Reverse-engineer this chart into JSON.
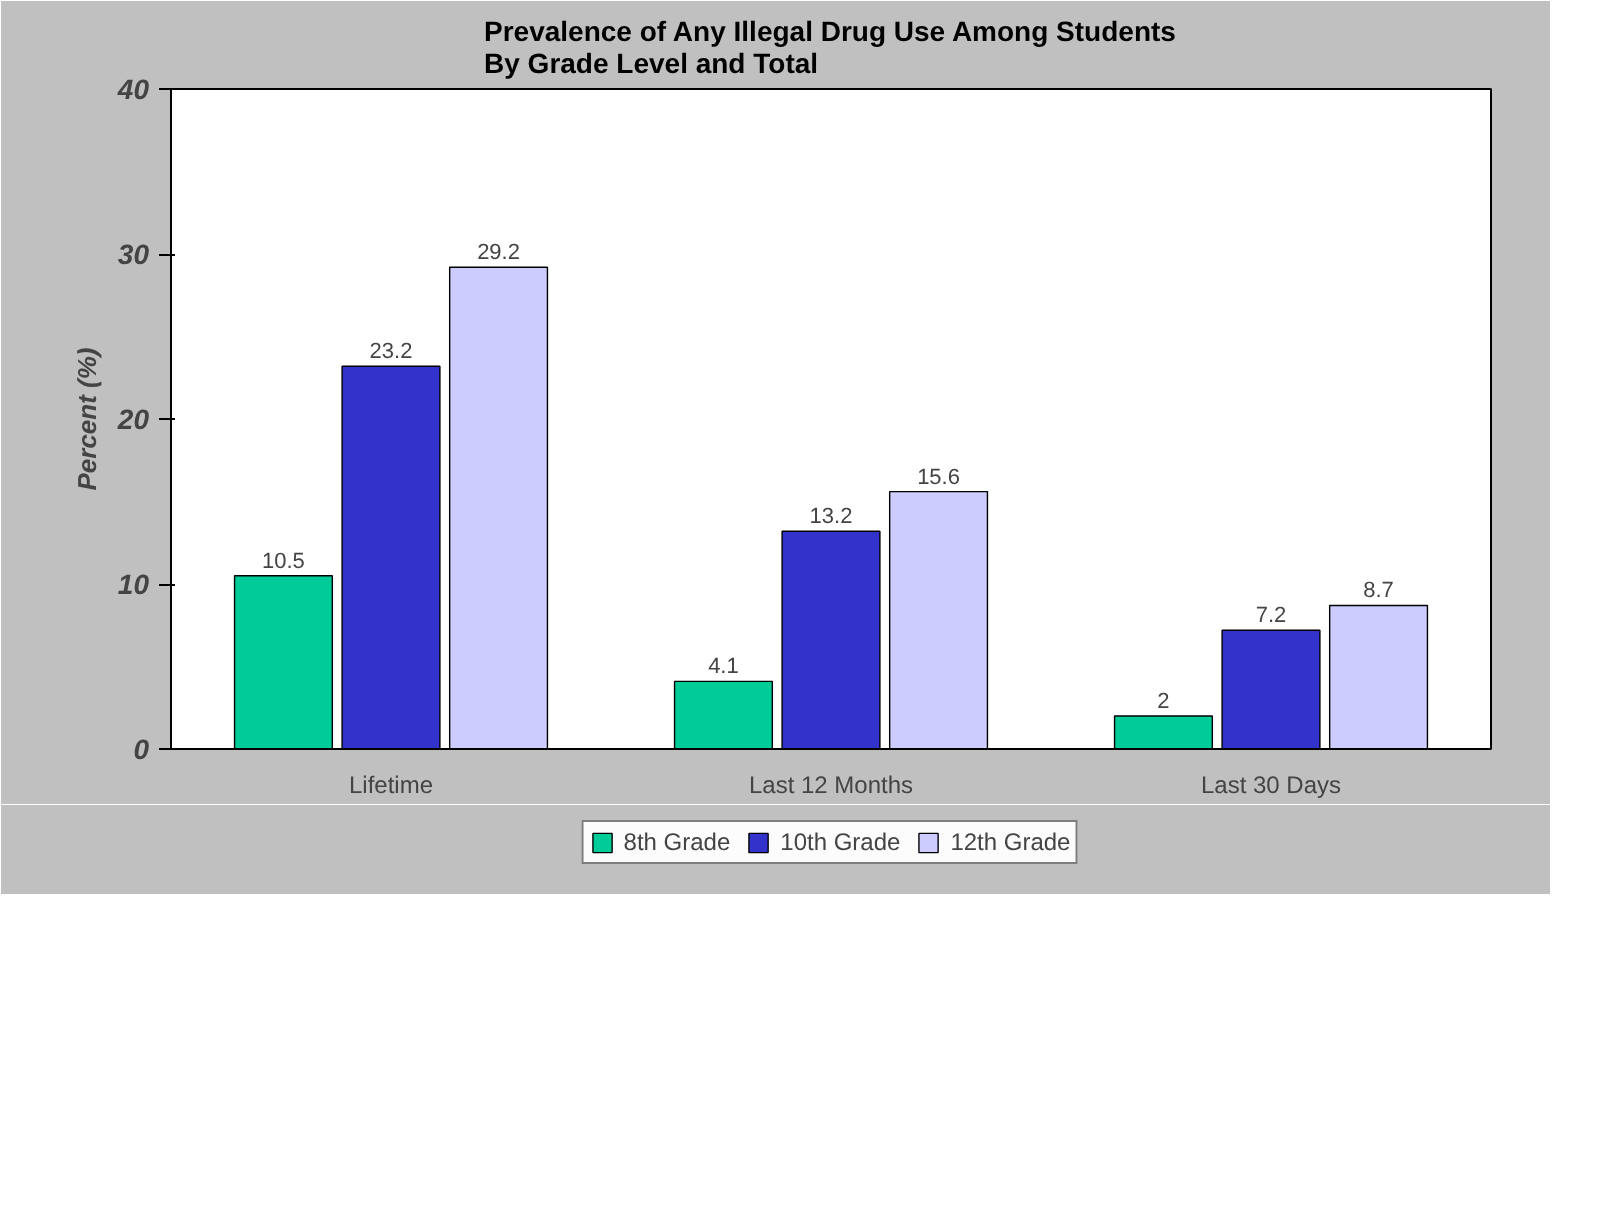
{
  "chart_data": {
    "type": "bar",
    "title": "Prevalence of Any Illegal Drug Use Among Students\nBy Grade Level and Total",
    "ylabel": "Percent (%)",
    "categories": [
      "Lifetime",
      "Last 12 Months",
      "Last 30 Days"
    ],
    "series": [
      {
        "name": "8th Grade",
        "color": "#00cc99",
        "values": [
          10.5,
          4.1,
          2
        ]
      },
      {
        "name": "10th Grade",
        "color": "#3333cc",
        "values": [
          23.2,
          13.2,
          7.2
        ]
      },
      {
        "name": "12th Grade",
        "color": "#ccccff",
        "values": [
          29.2,
          15.6,
          8.7
        ]
      }
    ],
    "ylim": [
      0,
      40
    ],
    "yticks": [
      0,
      10,
      20,
      30,
      40
    ],
    "data_labels": true,
    "legend": "bottom",
    "grid": false
  }
}
